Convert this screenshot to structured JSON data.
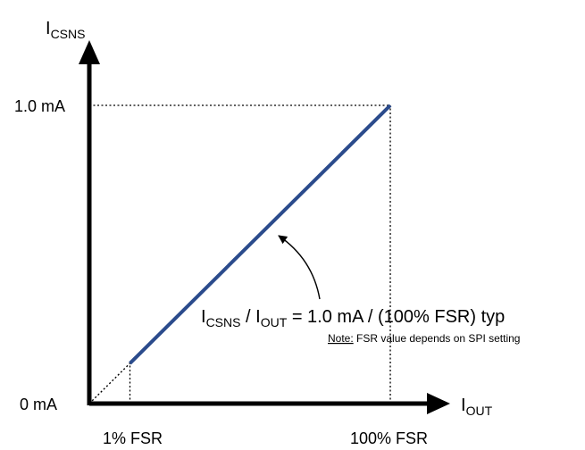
{
  "chart_data": {
    "type": "line",
    "x_axis": {
      "label_main": "I",
      "label_sub": "OUT",
      "ticks": [
        {
          "value": 1,
          "label": "1% FSR"
        },
        {
          "value": 100,
          "label": "100% FSR"
        }
      ],
      "xlim": [
        0,
        100
      ]
    },
    "y_axis": {
      "label_main": "I",
      "label_sub": "CSNS",
      "ticks": [
        {
          "value": 0,
          "label": "0 mA"
        },
        {
          "value": 1.0,
          "label": "1.0 mA"
        }
      ],
      "ylim": [
        0,
        1.0
      ]
    },
    "series": [
      {
        "style": "solid",
        "color": "#2b4b8c",
        "x": [
          13.5,
          100
        ],
        "y": [
          0.135,
          1.0
        ]
      },
      {
        "style": "dotted",
        "color": "#000000",
        "x": [
          0,
          13.5
        ],
        "y": [
          0,
          0.135
        ]
      }
    ],
    "reference_lines": [
      {
        "style": "dotted",
        "x": [
          0,
          100
        ],
        "y": [
          1.0,
          1.0
        ]
      },
      {
        "style": "dotted",
        "x": [
          100,
          100
        ],
        "y": [
          0,
          1.0
        ]
      },
      {
        "style": "dotted",
        "x": [
          13.5,
          13.5
        ],
        "y": [
          0,
          0.135
        ]
      }
    ],
    "annotation": {
      "formula": {
        "p1": "I",
        "s1": "CSNS",
        "p2": " / I",
        "s2": "OUT",
        "p3": " = 1.0 mA / (100% FSR) typ"
      },
      "note_label": "Note:",
      "note_text": " FSR value depends on SPI setting",
      "arrow_target": {
        "x": 61,
        "y": 0.61
      }
    }
  }
}
